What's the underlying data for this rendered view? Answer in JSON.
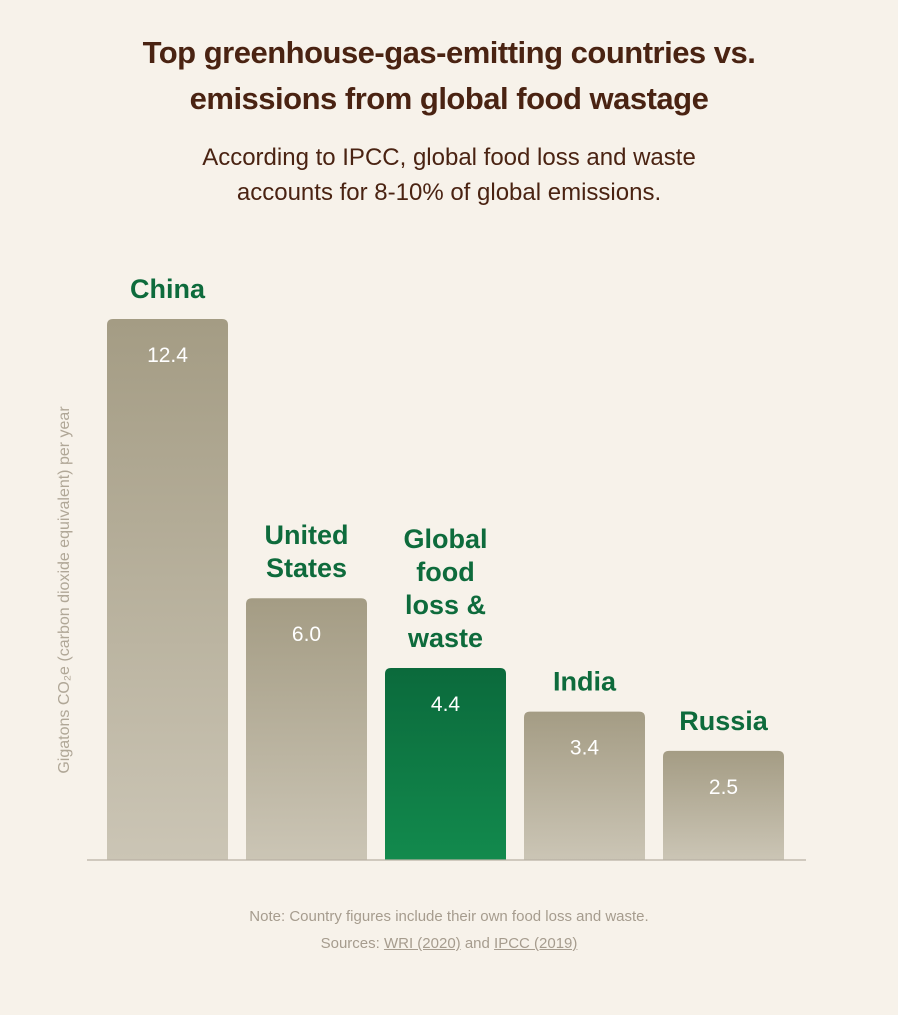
{
  "title_lines": [
    "Top greenhouse-gas-emitting countries vs.",
    "emissions from global food wastage"
  ],
  "subtitle_lines": [
    "According to IPCC, global food loss and waste",
    "accounts for 8-10% of global emissions."
  ],
  "colors": {
    "background": "#f7f2ea",
    "bar_top": "#a49c84",
    "bar_bottom": "#cbc5b5",
    "highlight_top": "#0b6a3c",
    "highlight_bottom": "#128a4d",
    "label_green": "#0e6b3c",
    "title_brown": "#4a2312",
    "axis": "#b9b1a3"
  },
  "note": {
    "line1": "Note: Country figures include their own food loss and waste.",
    "sources_prefix": "Sources: ",
    "source1": "WRI (2020)",
    "and": " and ",
    "source2": "IPCC (2019)"
  },
  "chart_data": {
    "type": "bar",
    "title": "Top greenhouse-gas-emitting countries vs. emissions from global food wastage",
    "ylabel": "Gigatons CO₂e (carbon dioxide equivalent) per year",
    "xlabel": "",
    "ylim": [
      0,
      12.4
    ],
    "grid": false,
    "categories": [
      "China",
      "United States",
      "Global food loss & waste",
      "India",
      "Russia"
    ],
    "category_label_lines": [
      [
        "China"
      ],
      [
        "United",
        "States"
      ],
      [
        "Global",
        "food",
        "loss &",
        "waste"
      ],
      [
        "India"
      ],
      [
        "Russia"
      ]
    ],
    "values": [
      12.4,
      6.0,
      4.4,
      3.4,
      2.5
    ],
    "value_labels": [
      "12.4",
      "6.0",
      "4.4",
      "3.4",
      "2.5"
    ],
    "highlight_index": 2
  }
}
